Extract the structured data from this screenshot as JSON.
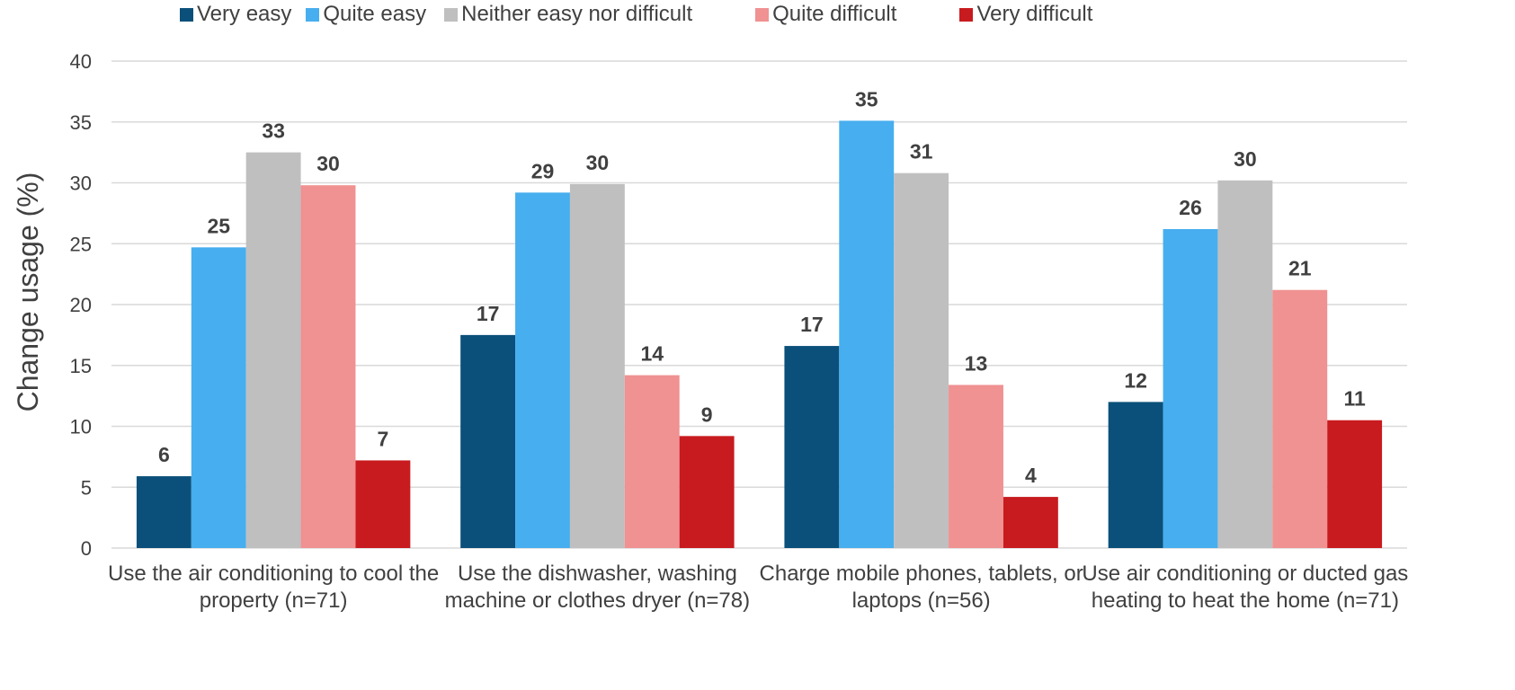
{
  "chart_data": {
    "type": "bar",
    "y_label": "Change usage (%)",
    "categories": [
      "Use the air conditioning to cool the property (n=71)",
      "Use the dishwasher, washing machine or clothes dryer (n=78)",
      "Charge mobile phones, tablets, or laptops (n=56)",
      "Use air conditioning or ducted gas heating to heat the home (n=71)"
    ],
    "series": [
      {
        "name": "Very easy",
        "color": "#0b507a",
        "values": [
          5.9,
          17.5,
          16.6,
          12.0
        ],
        "value_labels": [
          "6",
          "17",
          "17",
          "12"
        ]
      },
      {
        "name": "Quite easy",
        "color": "#47aeef",
        "values": [
          24.7,
          29.2,
          35.1,
          26.2
        ],
        "value_labels": [
          "25",
          "29",
          "35",
          "26"
        ]
      },
      {
        "name": "Neither easy nor difficult",
        "color": "#bfbfbf",
        "values": [
          32.5,
          29.9,
          30.8,
          30.2
        ],
        "value_labels": [
          "33",
          "30",
          "31",
          "30"
        ]
      },
      {
        "name": "Quite difficult",
        "color": "#f09192",
        "values": [
          29.8,
          14.2,
          13.4,
          21.2
        ],
        "value_labels": [
          "30",
          "14",
          "13",
          "21"
        ]
      },
      {
        "name": "Very difficult",
        "color": "#c81b1f",
        "values": [
          7.2,
          9.2,
          4.2,
          10.5
        ],
        "value_labels": [
          "7",
          "9",
          "4",
          "11"
        ]
      }
    ],
    "ylim": [
      0,
      40
    ],
    "yticks": [
      0,
      5,
      10,
      15,
      20,
      25,
      30,
      35,
      40
    ],
    "grid": true,
    "legend": "top"
  }
}
